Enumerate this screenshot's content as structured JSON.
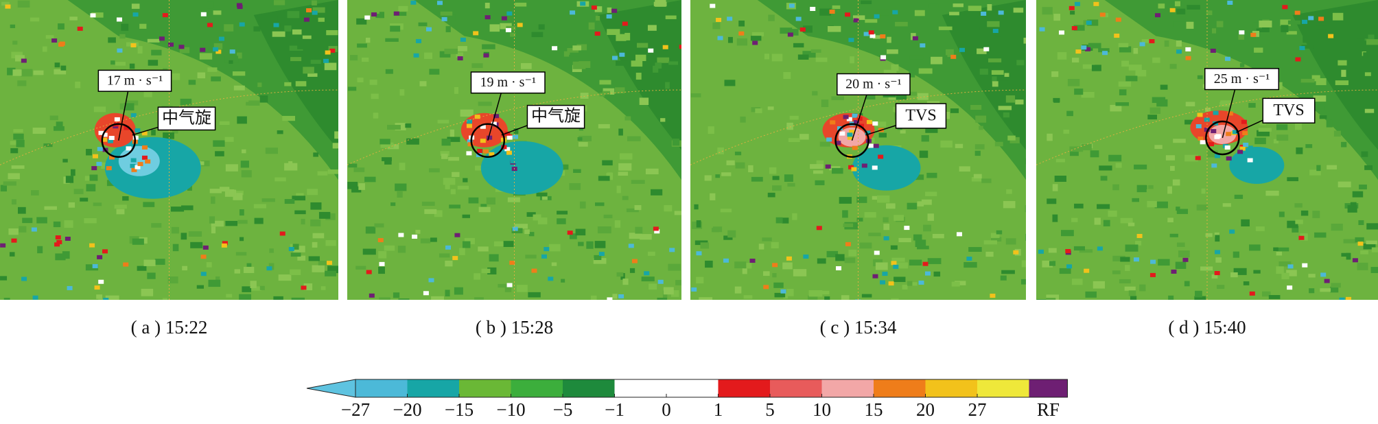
{
  "panels": [
    {
      "caption": "( a ) 15:22",
      "speed": "17 m · s⁻¹",
      "label": "中气旋"
    },
    {
      "caption": "( b ) 15:28",
      "speed": "19 m · s⁻¹",
      "label": "中气旋"
    },
    {
      "caption": "( c ) 15:34",
      "speed": "20 m · s⁻¹",
      "label": "TVS"
    },
    {
      "caption": "( d ) 15:40",
      "speed": "25 m · s⁻¹",
      "label": "TVS"
    }
  ],
  "colorbar": {
    "arrow_color": "#5ec3e0",
    "colors": [
      "#4cb9d8",
      "#17a6a6",
      "#6ab836",
      "#3cae3c",
      "#1e8a3c",
      "#ffffff",
      "#ffffff",
      "#e31a1c",
      "#e85b5b",
      "#f2a7a7",
      "#ef7d1a",
      "#f2c21b",
      "#efe83a",
      "#6e1f73"
    ],
    "ticks": [
      "−27",
      "−20",
      "−15",
      "−10",
      "−5",
      "−1",
      "0",
      "1",
      "5",
      "10",
      "15",
      "20",
      "27",
      "RF"
    ]
  }
}
